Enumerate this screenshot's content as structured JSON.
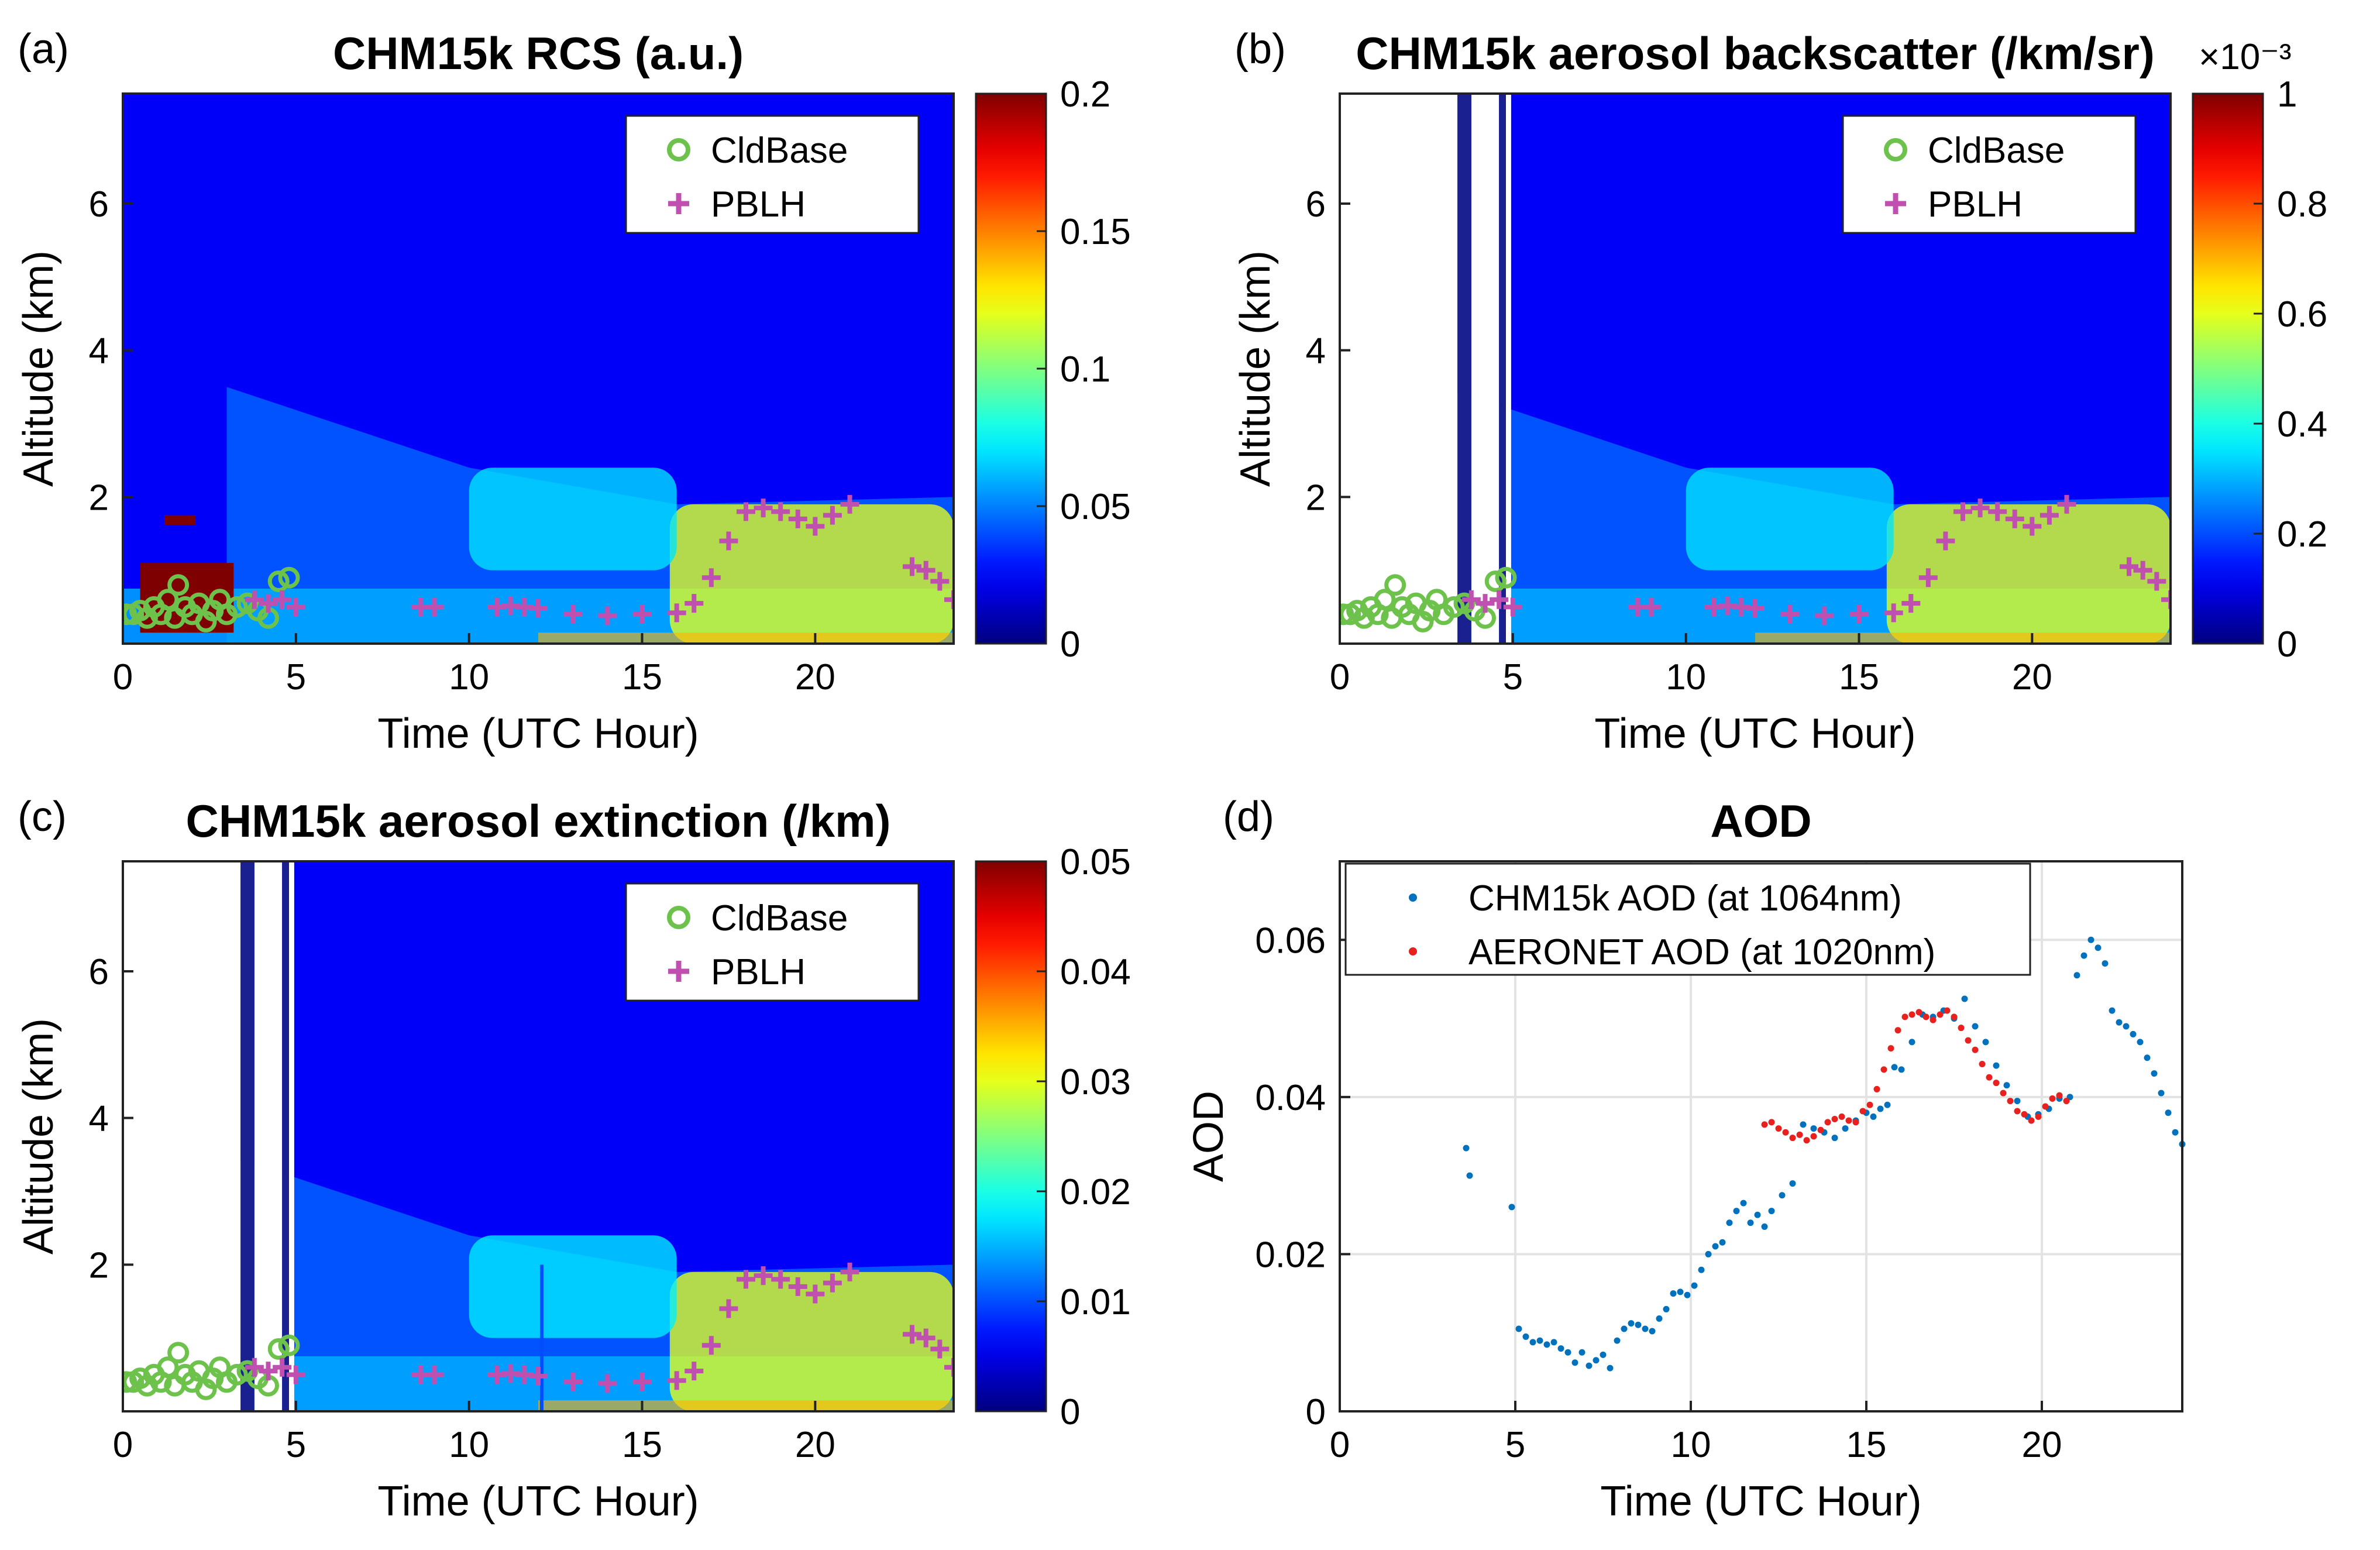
{
  "chart_data": [
    {
      "type": "heatmap",
      "panel_label": "(a)",
      "title": "CHM15k RCS (a.u.)",
      "xlabel": "Time (UTC Hour)",
      "ylabel": "Altitude (km)",
      "xlim": [
        0,
        24
      ],
      "ylim": [
        0,
        7.5
      ],
      "xticks": [
        "0",
        "5",
        "10",
        "15",
        "20"
      ],
      "yticks": [
        "2",
        "4",
        "6"
      ],
      "colorbar": {
        "range": [
          0,
          0.2
        ],
        "ticks": [
          "0",
          "0.05",
          "0.1",
          "0.15",
          "0.2"
        ],
        "exponent": "",
        "colormap": "jet"
      },
      "legend": [
        "CldBase",
        "PBLH"
      ],
      "blank_time_ranges": [],
      "separator_lines": [],
      "layers": [
        {
          "t0": 15.8,
          "t1": 24,
          "h0": 0,
          "h1": 1.9,
          "value": 0.12
        },
        {
          "t0": 10,
          "t1": 16,
          "h0": 1.0,
          "h1": 2.4,
          "value": 0.07
        }
      ]
    },
    {
      "type": "heatmap",
      "panel_label": "(b)",
      "title": "CHM15k aerosol backscatter (/km/sr)",
      "xlabel": "Time (UTC Hour)",
      "ylabel": "Altitude (km)",
      "xlim": [
        0,
        24
      ],
      "ylim": [
        0,
        7.5
      ],
      "xticks": [
        "0",
        "5",
        "10",
        "15",
        "20"
      ],
      "yticks": [
        "2",
        "4",
        "6"
      ],
      "colorbar": {
        "range": [
          0,
          1
        ],
        "ticks": [
          "0",
          "0.2",
          "0.4",
          "0.6",
          "0.8",
          "1"
        ],
        "exponent": "×10⁻³",
        "colormap": "jet"
      },
      "legend": [
        "CldBase",
        "PBLH"
      ],
      "blank_time_ranges": [
        [
          0,
          3.4
        ],
        [
          3.8,
          4.6
        ],
        [
          4.8,
          4.95
        ]
      ],
      "separator_lines": [],
      "layers": [
        {
          "t0": 15.8,
          "t1": 24,
          "h0": 0,
          "h1": 1.9,
          "value": 0.6
        },
        {
          "t0": 10,
          "t1": 16,
          "h0": 1.0,
          "h1": 2.4,
          "value": 0.35
        }
      ]
    },
    {
      "type": "heatmap",
      "panel_label": "(c)",
      "title": "CHM15k aerosol extinction (/km)",
      "xlabel": "Time (UTC Hour)",
      "ylabel": "Altitude (km)",
      "xlim": [
        0,
        24
      ],
      "ylim": [
        0,
        7.5
      ],
      "xticks": [
        "0",
        "5",
        "10",
        "15",
        "20"
      ],
      "yticks": [
        "2",
        "4",
        "6"
      ],
      "colorbar": {
        "range": [
          0,
          0.05
        ],
        "ticks": [
          "0",
          "0.01",
          "0.02",
          "0.03",
          "0.04",
          "0.05"
        ],
        "exponent": "",
        "colormap": "jet"
      },
      "legend": [
        "CldBase",
        "PBLH"
      ],
      "blank_time_ranges": [
        [
          0,
          3.4
        ],
        [
          3.8,
          4.6
        ],
        [
          4.8,
          4.95
        ]
      ],
      "separator_lines": [
        12.1
      ],
      "layers": [
        {
          "t0": 15.8,
          "t1": 24,
          "h0": 0,
          "h1": 1.9,
          "value": 0.03
        },
        {
          "t0": 10,
          "t1": 16,
          "h0": 1.0,
          "h1": 2.4,
          "value": 0.018
        }
      ]
    }
  ],
  "cldbase": {
    "t": [
      0.1,
      0.3,
      0.5,
      0.7,
      0.9,
      1.1,
      1.3,
      1.5,
      1.6,
      1.8,
      2.0,
      2.2,
      2.4,
      2.6,
      2.8,
      3.0,
      3.3,
      3.6,
      3.9,
      4.2,
      4.5,
      4.8
    ],
    "h": [
      0.4,
      0.4,
      0.45,
      0.35,
      0.5,
      0.4,
      0.6,
      0.35,
      0.8,
      0.5,
      0.4,
      0.55,
      0.3,
      0.45,
      0.6,
      0.4,
      0.5,
      0.55,
      0.45,
      0.35,
      0.85,
      0.9
    ]
  },
  "pblh": {
    "t": [
      3.8,
      4.2,
      4.6,
      5.0,
      8.6,
      9.0,
      10.8,
      11.2,
      11.6,
      12.0,
      13.0,
      14.0,
      15.0,
      16.0,
      16.5,
      17.0,
      17.5,
      18.0,
      18.5,
      19.0,
      19.5,
      20.0,
      20.5,
      21.0,
      22.8,
      23.2,
      23.6,
      24.0
    ],
    "h": [
      0.6,
      0.55,
      0.6,
      0.5,
      0.5,
      0.5,
      0.5,
      0.52,
      0.5,
      0.48,
      0.4,
      0.38,
      0.4,
      0.42,
      0.55,
      0.9,
      1.4,
      1.8,
      1.85,
      1.8,
      1.7,
      1.6,
      1.75,
      1.9,
      1.05,
      1.0,
      0.85,
      0.6
    ]
  },
  "aod_chart": {
    "type": "scatter",
    "panel_label": "(d)",
    "title": "AOD",
    "xlabel": "Time (UTC Hour)",
    "ylabel": "AOD",
    "xlim": [
      0,
      24
    ],
    "ylim": [
      0,
      0.07
    ],
    "xticks": [
      "0",
      "5",
      "10",
      "15",
      "20"
    ],
    "yticks": [
      "0",
      "0.02",
      "0.04",
      "0.06"
    ],
    "grid": true,
    "legend_position": "top",
    "series": [
      {
        "name": "CHM15k AOD (at 1064nm)",
        "color": "#0072bd",
        "x": [
          3.6,
          3.7,
          4.9,
          5.1,
          5.3,
          5.5,
          5.7,
          5.9,
          6.1,
          6.3,
          6.5,
          6.7,
          6.9,
          7.1,
          7.3,
          7.5,
          7.7,
          7.9,
          8.1,
          8.3,
          8.5,
          8.7,
          8.9,
          9.1,
          9.3,
          9.5,
          9.7,
          9.9,
          10.1,
          10.3,
          10.5,
          10.7,
          10.9,
          11.1,
          11.3,
          11.5,
          11.7,
          11.9,
          12.1,
          12.3,
          12.6,
          12.9,
          13.2,
          13.5,
          13.8,
          14.1,
          14.4,
          14.7,
          15.0,
          15.2,
          15.4,
          15.6,
          15.8,
          16.0,
          16.3,
          16.6,
          16.9,
          17.2,
          17.5,
          17.8,
          18.1,
          18.4,
          18.7,
          19.0,
          19.3,
          19.6,
          19.9,
          20.2,
          20.5,
          20.8,
          21.0,
          21.2,
          21.4,
          21.6,
          21.8,
          22.0,
          22.2,
          22.4,
          22.6,
          22.8,
          23.0,
          23.2,
          23.4,
          23.6,
          23.8,
          24.0
        ],
        "y": [
          0.0335,
          0.03,
          0.026,
          0.0105,
          0.0095,
          0.0088,
          0.009,
          0.0085,
          0.0088,
          0.008,
          0.0075,
          0.0062,
          0.0075,
          0.0058,
          0.0065,
          0.0072,
          0.0055,
          0.009,
          0.0105,
          0.0112,
          0.011,
          0.0105,
          0.0102,
          0.0118,
          0.013,
          0.015,
          0.0152,
          0.0148,
          0.016,
          0.018,
          0.02,
          0.021,
          0.0215,
          0.024,
          0.0255,
          0.0265,
          0.024,
          0.025,
          0.0235,
          0.0255,
          0.0275,
          0.029,
          0.0365,
          0.036,
          0.0355,
          0.0348,
          0.036,
          0.037,
          0.038,
          0.0375,
          0.0385,
          0.039,
          0.0438,
          0.0435,
          0.047,
          0.0505,
          0.0502,
          0.051,
          0.05,
          0.0525,
          0.049,
          0.047,
          0.044,
          0.0415,
          0.0395,
          0.0375,
          0.0378,
          0.0385,
          0.0398,
          0.04,
          0.0555,
          0.058,
          0.06,
          0.059,
          0.057,
          0.051,
          0.0495,
          0.049,
          0.048,
          0.047,
          0.045,
          0.043,
          0.0405,
          0.038,
          0.0355,
          0.034
        ]
      },
      {
        "name": "AERONET AOD (at 1020nm)",
        "color": "#e8201e",
        "x": [
          12.1,
          12.3,
          12.5,
          12.7,
          12.9,
          13.1,
          13.3,
          13.5,
          13.7,
          13.9,
          14.1,
          14.3,
          14.5,
          14.7,
          14.9,
          15.1,
          15.3,
          15.5,
          15.7,
          15.9,
          16.1,
          16.3,
          16.5,
          16.7,
          16.9,
          17.1,
          17.3,
          17.5,
          17.7,
          17.9,
          18.1,
          18.3,
          18.5,
          18.7,
          18.9,
          19.1,
          19.3,
          19.5,
          19.7,
          19.9,
          20.1,
          20.3,
          20.5,
          20.7
        ],
        "y": [
          0.0365,
          0.0368,
          0.036,
          0.0355,
          0.0348,
          0.0352,
          0.0345,
          0.035,
          0.0358,
          0.0368,
          0.0372,
          0.0375,
          0.037,
          0.0368,
          0.0382,
          0.039,
          0.041,
          0.0435,
          0.0462,
          0.0485,
          0.0502,
          0.0505,
          0.0508,
          0.0502,
          0.0498,
          0.0505,
          0.051,
          0.0502,
          0.0488,
          0.0472,
          0.046,
          0.0442,
          0.0425,
          0.0418,
          0.0405,
          0.0395,
          0.0382,
          0.0378,
          0.037,
          0.0375,
          0.0388,
          0.0398,
          0.0402,
          0.0395
        ]
      }
    ]
  }
}
